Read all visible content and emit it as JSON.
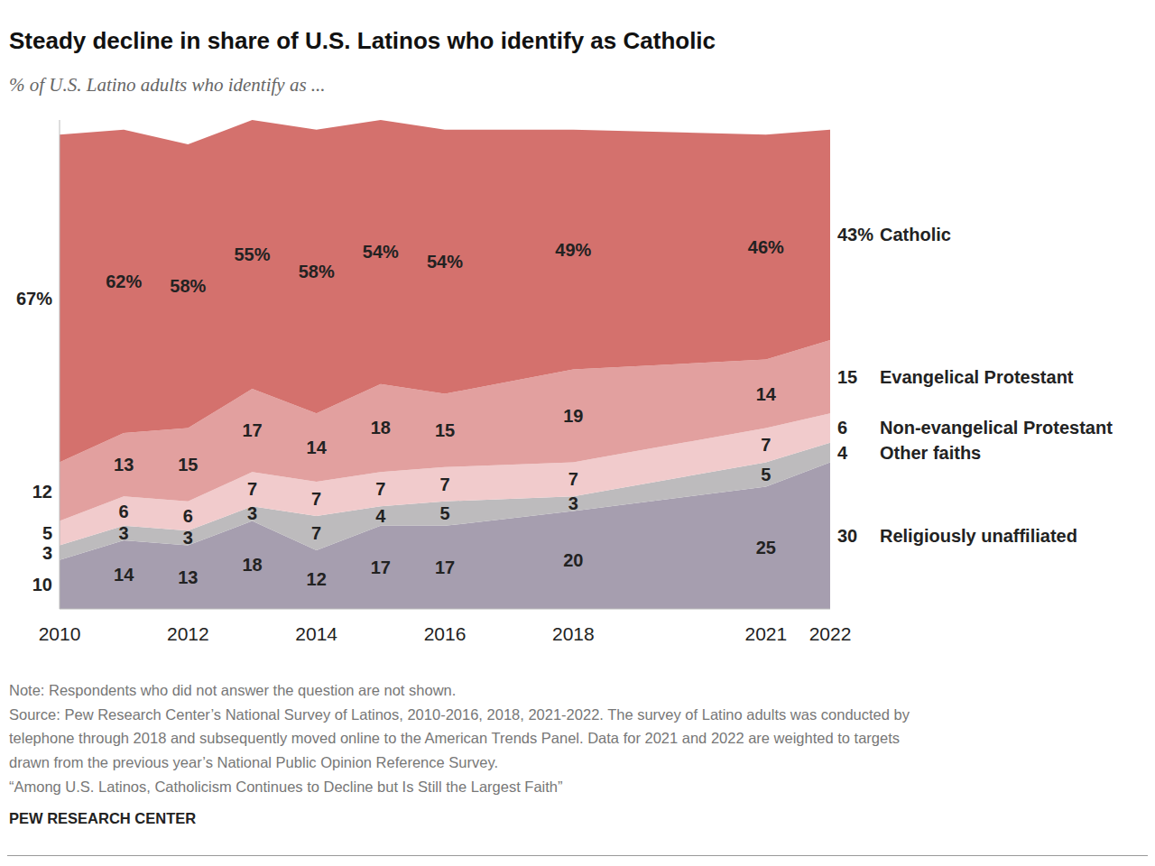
{
  "chart_data": {
    "type": "area",
    "title": "Steady decline in share of U.S. Latinos who identify as Catholic",
    "subtitle": "% of U.S. Latino adults who identify as ...",
    "x": [
      2010,
      2011,
      2012,
      2013,
      2014,
      2015,
      2016,
      2018,
      2021,
      2022
    ],
    "xlim": [
      2010,
      2022
    ],
    "xticks": [
      2010,
      2012,
      2014,
      2016,
      2018,
      2021,
      2022
    ],
    "ylim": [
      0,
      100
    ],
    "stacked": true,
    "data_labels": true,
    "tick_labels": "x",
    "series": [
      {
        "name": "Religiously unaffiliated",
        "color": "#a69eaf",
        "values": [
          10,
          14,
          13,
          18,
          12,
          17,
          17,
          20,
          25,
          30
        ]
      },
      {
        "name": "Other faiths",
        "color": "#bdbbbd",
        "values": [
          3,
          3,
          3,
          3,
          7,
          4,
          5,
          3,
          5,
          4
        ]
      },
      {
        "name": "Non-evangelical Protestant",
        "color": "#f1cbcc",
        "values": [
          5,
          6,
          6,
          7,
          7,
          7,
          7,
          7,
          7,
          6
        ]
      },
      {
        "name": "Evangelical Protestant",
        "color": "#e2a09f",
        "values": [
          12,
          13,
          15,
          17,
          14,
          18,
          15,
          19,
          14,
          15
        ]
      },
      {
        "name": "Catholic",
        "color": "#d4716d",
        "values": [
          67,
          62,
          58,
          55,
          58,
          54,
          54,
          49,
          46,
          43
        ],
        "value_labels": [
          "67%",
          "62%",
          "58%",
          "55%",
          "58%",
          "54%",
          "54%",
          "49%",
          "46%",
          "43%"
        ]
      }
    ],
    "notes": [
      "Note: Respondents who did not answer the question are not shown.",
      "Source: Pew Research Center’s National Survey of Latinos, 2010-2016, 2018, 2021-2022. The survey of Latino adults was conducted by",
      "telephone through 2018 and subsequently moved online to the American Trends Panel. Data for 2021 and 2022 are weighted to targets",
      "drawn from the previous year’s National Public Opinion Reference Survey.",
      "“Among U.S. Latinos, Catholicism Continues to Decline but Is Still the Largest Faith”"
    ],
    "source": "PEW RESEARCH CENTER"
  }
}
